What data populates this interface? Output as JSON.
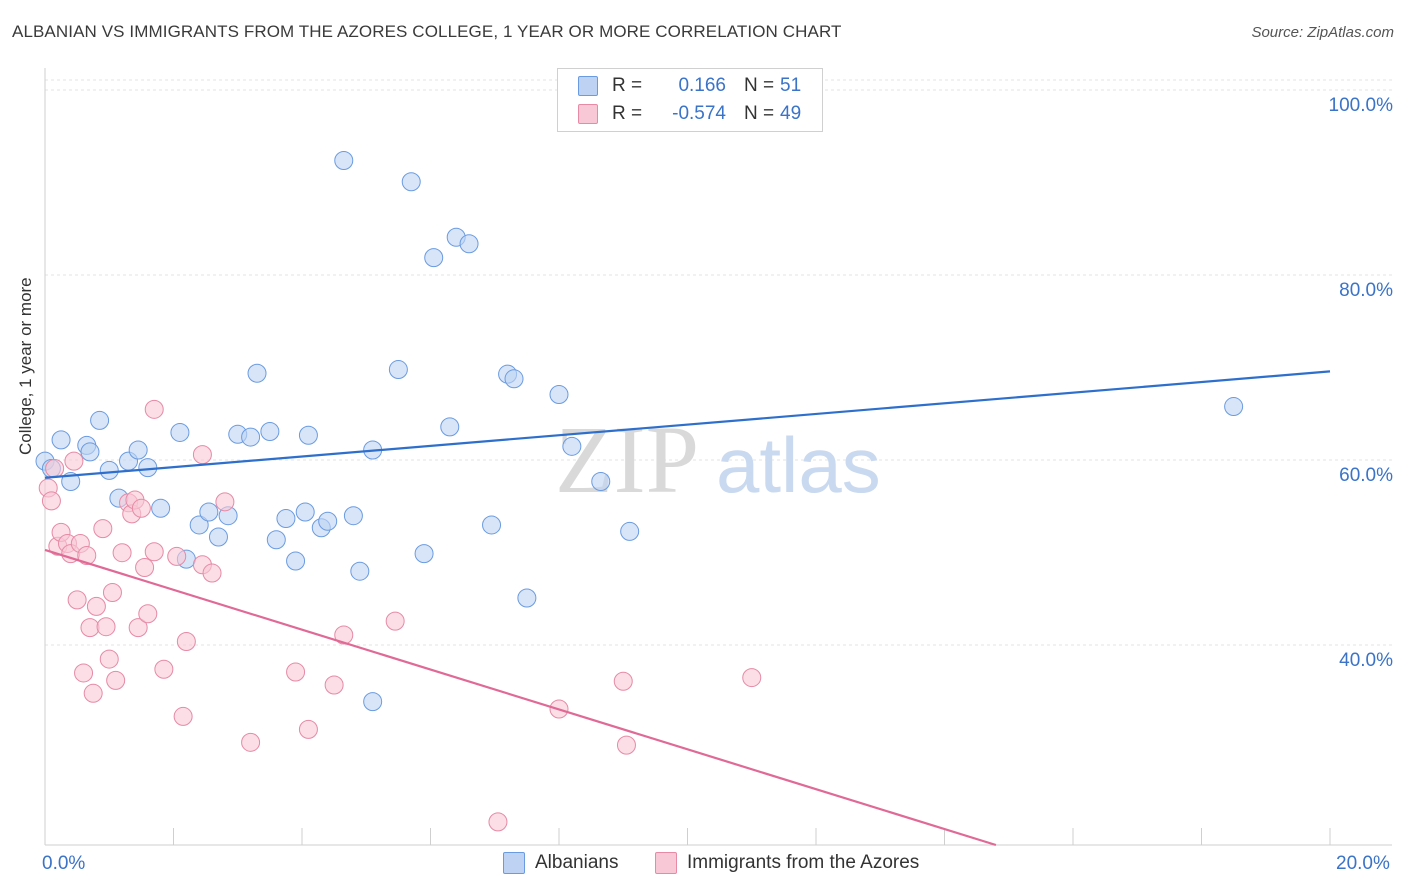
{
  "title": "ALBANIAN VS IMMIGRANTS FROM THE AZORES COLLEGE, 1 YEAR OR MORE CORRELATION CHART",
  "source": "Source: ZipAtlas.com",
  "watermark": {
    "zip": "ZIP",
    "atlas": "atlas"
  },
  "colors": {
    "albanians": "#6a9be0",
    "azores": "#e68aa6",
    "albanians_line": "#2f6fcc",
    "azores_line": "#e06a95",
    "tick_text": "#3a73c8"
  },
  "legend_top": {
    "rows": [
      {
        "r_label": "R =",
        "r_value": "0.166",
        "n_label": "N =",
        "n_value": "51"
      },
      {
        "r_label": "R =",
        "r_value": "-0.574",
        "n_label": "N =",
        "n_value": "49"
      }
    ]
  },
  "chart_data": {
    "type": "scatter",
    "ylabel": "College, 1 year or more",
    "xlim": [
      0,
      20
    ],
    "ylim": [
      20,
      104
    ],
    "x_tick_labels": {
      "min": "0.0%",
      "max": "20.0%"
    },
    "y_ticks": [
      {
        "value": 100,
        "label": "100.0%"
      },
      {
        "value": 80,
        "label": "80.0%"
      },
      {
        "value": 60,
        "label": "60.0%"
      },
      {
        "value": 40,
        "label": "40.0%"
      }
    ],
    "grid": "horizontal dashed",
    "legend_position": "bottom",
    "series": [
      {
        "name": "Albanians",
        "trend": {
          "x": [
            0,
            20
          ],
          "y": [
            59.7,
            71.2
          ]
        },
        "points": [
          [
            0.0,
            61.5
          ],
          [
            0.1,
            60.7
          ],
          [
            0.25,
            63.8
          ],
          [
            0.4,
            59.3
          ],
          [
            0.65,
            63.2
          ],
          [
            0.7,
            62.5
          ],
          [
            0.85,
            65.9
          ],
          [
            1.0,
            60.5
          ],
          [
            1.15,
            57.5
          ],
          [
            1.3,
            61.5
          ],
          [
            1.45,
            62.7
          ],
          [
            1.6,
            60.8
          ],
          [
            1.8,
            56.4
          ],
          [
            2.1,
            64.6
          ],
          [
            2.2,
            50.9
          ],
          [
            2.4,
            54.6
          ],
          [
            2.55,
            56.0
          ],
          [
            2.7,
            53.3
          ],
          [
            2.85,
            55.6
          ],
          [
            3.0,
            64.4
          ],
          [
            3.2,
            64.1
          ],
          [
            3.3,
            71.0
          ],
          [
            3.5,
            64.7
          ],
          [
            3.6,
            53.0
          ],
          [
            3.75,
            55.3
          ],
          [
            3.9,
            50.7
          ],
          [
            4.05,
            56.0
          ],
          [
            4.1,
            64.3
          ],
          [
            4.3,
            54.3
          ],
          [
            4.4,
            55.0
          ],
          [
            4.65,
            94.0
          ],
          [
            4.8,
            55.6
          ],
          [
            4.9,
            49.6
          ],
          [
            5.1,
            62.7
          ],
          [
            5.5,
            71.4
          ],
          [
            5.7,
            91.7
          ],
          [
            5.9,
            51.5
          ],
          [
            6.05,
            83.5
          ],
          [
            6.3,
            65.2
          ],
          [
            6.4,
            85.7
          ],
          [
            6.6,
            85.0
          ],
          [
            6.95,
            54.6
          ],
          [
            7.2,
            70.9
          ],
          [
            7.3,
            70.4
          ],
          [
            7.5,
            46.7
          ],
          [
            8.0,
            68.7
          ],
          [
            8.2,
            63.1
          ],
          [
            8.65,
            59.3
          ],
          [
            9.1,
            53.9
          ],
          [
            5.1,
            35.5
          ],
          [
            18.5,
            67.4
          ]
        ]
      },
      {
        "name": "Immigrants from the Azores",
        "trend": {
          "x": [
            0,
            14.8
          ],
          "y": [
            51.9,
            20
          ]
        },
        "points": [
          [
            0.05,
            58.6
          ],
          [
            0.1,
            57.2
          ],
          [
            0.15,
            60.7
          ],
          [
            0.2,
            52.3
          ],
          [
            0.25,
            53.8
          ],
          [
            0.35,
            52.6
          ],
          [
            0.4,
            51.5
          ],
          [
            0.45,
            61.5
          ],
          [
            0.5,
            46.5
          ],
          [
            0.55,
            52.6
          ],
          [
            0.6,
            38.6
          ],
          [
            0.65,
            51.3
          ],
          [
            0.7,
            43.5
          ],
          [
            0.75,
            36.4
          ],
          [
            0.8,
            45.8
          ],
          [
            0.9,
            54.2
          ],
          [
            0.95,
            43.6
          ],
          [
            1.0,
            40.1
          ],
          [
            1.05,
            47.3
          ],
          [
            1.1,
            37.8
          ],
          [
            1.2,
            51.6
          ],
          [
            1.3,
            57.0
          ],
          [
            1.35,
            55.8
          ],
          [
            1.4,
            57.3
          ],
          [
            1.45,
            43.5
          ],
          [
            1.5,
            56.4
          ],
          [
            1.55,
            50.0
          ],
          [
            1.6,
            45.0
          ],
          [
            1.7,
            51.7
          ],
          [
            1.7,
            67.1
          ],
          [
            1.85,
            39.0
          ],
          [
            2.05,
            51.2
          ],
          [
            2.15,
            33.9
          ],
          [
            2.2,
            42.0
          ],
          [
            2.45,
            50.3
          ],
          [
            2.45,
            62.2
          ],
          [
            2.6,
            49.4
          ],
          [
            2.8,
            57.1
          ],
          [
            3.2,
            31.1
          ],
          [
            3.9,
            38.7
          ],
          [
            4.1,
            32.5
          ],
          [
            4.5,
            37.3
          ],
          [
            4.65,
            42.7
          ],
          [
            5.45,
            44.2
          ],
          [
            7.05,
            22.5
          ],
          [
            8.0,
            34.7
          ],
          [
            9.05,
            30.8
          ],
          [
            9.0,
            37.7
          ],
          [
            11.0,
            38.1
          ]
        ]
      }
    ]
  }
}
